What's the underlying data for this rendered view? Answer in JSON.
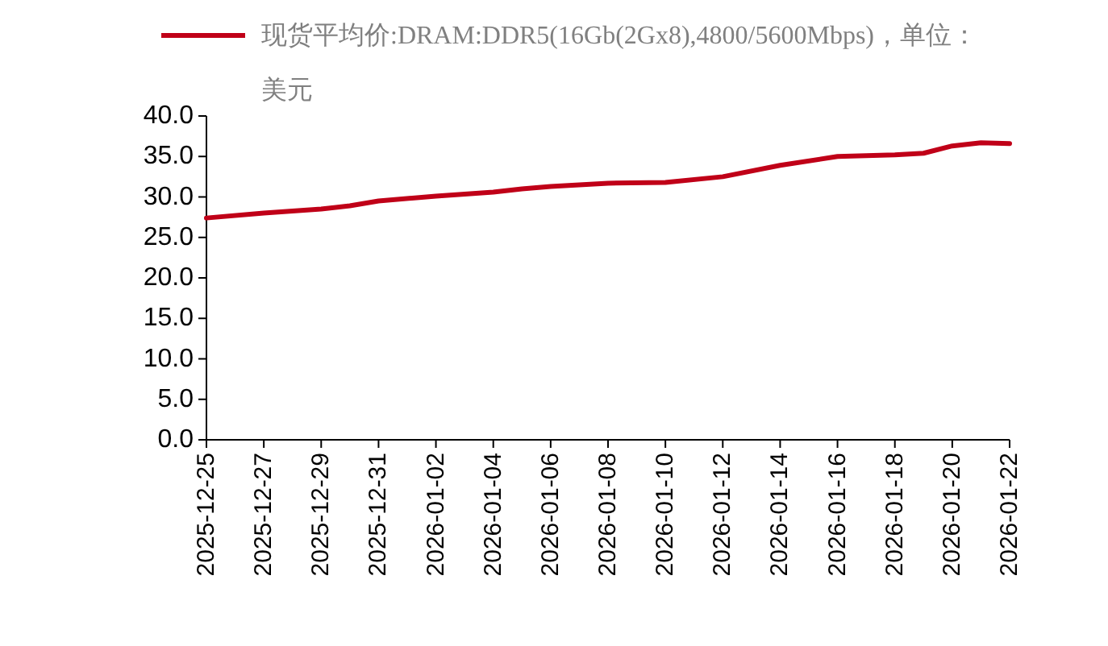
{
  "chart_data": {
    "type": "line",
    "legend": "top",
    "grid": false,
    "marker": "none",
    "line_style": "solid",
    "x": [
      "2025-12-25",
      "2025-12-27",
      "2025-12-29",
      "2025-12-30",
      "2025-12-31",
      "2026-01-02",
      "2026-01-04",
      "2026-01-05",
      "2026-01-06",
      "2026-01-08",
      "2026-01-10",
      "2026-01-12",
      "2026-01-14",
      "2026-01-16",
      "2026-01-18",
      "2026-01-19",
      "2026-01-20",
      "2026-01-21",
      "2026-01-22"
    ],
    "series": [
      {
        "name": "现货平均价:DRAM:DDR5(16Gb(2Gx8),4800/5600Mbps)，单位：美元",
        "color": "#c00018",
        "values": [
          27.4,
          28.0,
          28.5,
          28.9,
          29.5,
          30.1,
          30.6,
          31.0,
          31.3,
          31.7,
          31.8,
          32.5,
          33.9,
          35.0,
          35.2,
          35.4,
          36.3,
          36.7,
          36.6
        ]
      }
    ],
    "xlim": [
      "2025-12-25",
      "2026-01-22"
    ],
    "xticks": [
      "2025-12-25",
      "2025-12-27",
      "2025-12-29",
      "2025-12-31",
      "2026-01-02",
      "2026-01-04",
      "2026-01-06",
      "2026-01-08",
      "2026-01-10",
      "2026-01-12",
      "2026-01-14",
      "2026-01-16",
      "2026-01-18",
      "2026-01-20",
      "2026-01-22"
    ],
    "ylim": [
      0,
      40
    ],
    "yticks": [
      {
        "value": 0,
        "label": "0.0"
      },
      {
        "value": 5,
        "label": "5.0"
      },
      {
        "value": 10,
        "label": "10.0"
      },
      {
        "value": 15,
        "label": "15.0"
      },
      {
        "value": 20,
        "label": "20.0"
      },
      {
        "value": 25,
        "label": "25.0"
      },
      {
        "value": 30,
        "label": "30.0"
      },
      {
        "value": 35,
        "label": "35.0"
      },
      {
        "value": 40,
        "label": "40.0"
      }
    ]
  }
}
